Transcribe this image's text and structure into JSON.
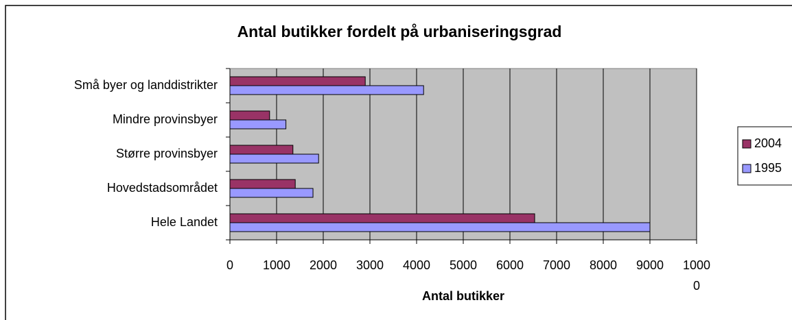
{
  "chart_data": {
    "type": "bar",
    "orientation": "horizontal",
    "title": "Antal butikker fordelt på urbaniseringsgrad",
    "x_label": "Antal butikker",
    "categories": [
      "Små byer og landdistrikter",
      "Mindre provinsbyer",
      "Større provinsbyer",
      "Hovedstadsområdet",
      "Hele Landet"
    ],
    "series": [
      {
        "name": "2004",
        "color": "#993366",
        "values": [
          2900,
          850,
          1350,
          1400,
          6530
        ]
      },
      {
        "name": "1995",
        "color": "#9999ff",
        "values": [
          4150,
          1200,
          1900,
          1780,
          9000
        ]
      }
    ],
    "xlim": [
      0,
      10000
    ],
    "xticks": [
      0,
      1000,
      2000,
      3000,
      4000,
      5000,
      6000,
      7000,
      8000,
      9000,
      10000
    ],
    "grid": true,
    "legend": "right"
  }
}
